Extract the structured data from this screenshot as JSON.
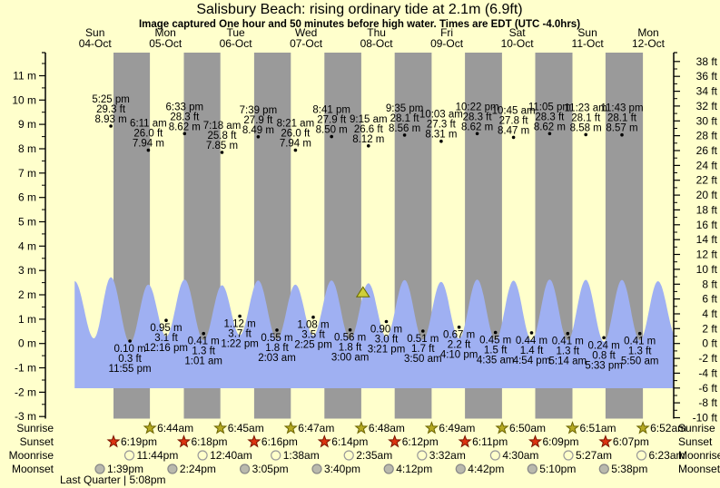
{
  "title": "Salisbury Beach: rising  ordinary tide at 2.1m (6.9ft)",
  "subtitle": "Image captured One hour and 50 minutes before high water. Times are EDT (UTC -4.0hrs)",
  "moon_phase": "Last Quarter | 5:08pm",
  "row_labels": {
    "sunrise": "Sunrise",
    "sunset": "Sunset",
    "moonrise": "Moonrise",
    "moonset": "Moonset"
  },
  "colors": {
    "background": "#ffffcc",
    "night_band": "#9a9a9a",
    "tide_fill": "#9fb0f2",
    "date_text": "#ee2222",
    "axis": "#000000",
    "sunrise_star": "#b5aa22",
    "sunrise_star_edge": "#6b6400",
    "sunset_star": "#dd3311",
    "sunset_star_edge": "#7a1500",
    "moonrise_circle": "#ffffca",
    "moonrise_circle_edge": "#999999",
    "moonset_circle": "#b9b9ad",
    "moonset_circle_edge": "#888888",
    "marker_triangle": "#cfcf3a",
    "marker_triangle_edge": "#6b6b00"
  },
  "chart_data": {
    "type": "area",
    "title": "Salisbury Beach: rising  ordinary tide at 2.1m (6.9ft)",
    "subtitle": "Image captured One hour and 50 minutes before high water. Times are EDT (UTC -4.0hrs)",
    "ylabel_left_unit": "m",
    "ylabel_right_unit": "ft",
    "y_axis_left_ticks": [
      "11 m",
      "10 m",
      "9 m",
      "8 m",
      "7 m",
      "6 m",
      "5 m",
      "4 m",
      "3 m",
      "2 m",
      "1 m",
      "0 m",
      "-1 m",
      "-2 m",
      "-3 m"
    ],
    "y_axis_right_ticks": [
      "38 ft",
      "36 ft",
      "34 ft",
      "32 ft",
      "30 ft",
      "28 ft",
      "26 ft",
      "24 ft",
      "22 ft",
      "20 ft",
      "18 ft",
      "16 ft",
      "14 ft",
      "12 ft",
      "10 ft",
      "8 ft",
      "6 ft",
      "4 ft",
      "2 ft",
      "0 ft",
      "-2 ft",
      "-4 ft",
      "-6 ft",
      "-8 ft",
      "-10 ft"
    ],
    "days": [
      {
        "name": "Sun",
        "date": "04-Oct"
      },
      {
        "name": "Mon",
        "date": "05-Oct"
      },
      {
        "name": "Tue",
        "date": "06-Oct"
      },
      {
        "name": "Wed",
        "date": "07-Oct"
      },
      {
        "name": "Thu",
        "date": "08-Oct"
      },
      {
        "name": "Fri",
        "date": "09-Oct"
      },
      {
        "name": "Sat",
        "date": "10-Oct"
      },
      {
        "name": "Sun",
        "date": "11-Oct"
      },
      {
        "name": "Mon",
        "date": "12-Oct"
      }
    ],
    "high_tides": [
      {
        "day": 0,
        "time": "5:25 pm",
        "height_ft": "29.3 ft",
        "height_m": "8.93 m"
      },
      {
        "day": 1,
        "time": "6:11 am",
        "height_ft": "26.0 ft",
        "height_m": "7.94 m"
      },
      {
        "day": 1,
        "time": "6:33 pm",
        "height_ft": "28.3 ft",
        "height_m": "8.62 m"
      },
      {
        "day": 2,
        "time": "7:18 am",
        "height_ft": "25.8 ft",
        "height_m": "7.85 m"
      },
      {
        "day": 2,
        "time": "7:39 pm",
        "height_ft": "27.9 ft",
        "height_m": "8.49 m"
      },
      {
        "day": 3,
        "time": "8:21 am",
        "height_ft": "26.0 ft",
        "height_m": "7.94 m"
      },
      {
        "day": 3,
        "time": "8:41 pm",
        "height_ft": "27.9 ft",
        "height_m": "8.50 m"
      },
      {
        "day": 4,
        "time": "9:15 am",
        "height_ft": "26.6 ft",
        "height_m": "8.12 m"
      },
      {
        "day": 4,
        "time": "9:35 pm",
        "height_ft": "28.1 ft",
        "height_m": "8.56 m"
      },
      {
        "day": 5,
        "time": "10:03 am",
        "height_ft": "27.3 ft",
        "height_m": "8.31 m"
      },
      {
        "day": 5,
        "time": "10:22 pm",
        "height_ft": "28.3 ft",
        "height_m": "8.62 m"
      },
      {
        "day": 6,
        "time": "10:45 am",
        "height_ft": "27.8 ft",
        "height_m": "8.47 m"
      },
      {
        "day": 6,
        "time": "11:05 pm",
        "height_ft": "28.3 ft",
        "height_m": "8.62 m"
      },
      {
        "day": 7,
        "time": "11:23 am",
        "height_ft": "28.1 ft",
        "height_m": "8.58 m"
      },
      {
        "day": 7,
        "time": "11:43 pm",
        "height_ft": "28.1 ft",
        "height_m": "8.57 m"
      }
    ],
    "low_tides": [
      {
        "day": 0,
        "time": "11:55 pm",
        "height_ft": "0.3 ft",
        "height_m": "0.10 m"
      },
      {
        "day": 1,
        "time": "12:16 pm",
        "height_ft": "3.1 ft",
        "height_m": "0.95 m"
      },
      {
        "day": 2,
        "time": "1:01 am",
        "height_ft": "1.3 ft",
        "height_m": "0.41 m"
      },
      {
        "day": 2,
        "time": "1:22 pm",
        "height_ft": "3.7 ft",
        "height_m": "1.12 m"
      },
      {
        "day": 3,
        "time": "2:03 am",
        "height_ft": "1.8 ft",
        "height_m": "0.55 m"
      },
      {
        "day": 3,
        "time": "2:25 pm",
        "height_ft": "3.5 ft",
        "height_m": "1.08 m"
      },
      {
        "day": 4,
        "time": "3:00 am",
        "height_ft": "1.8 ft",
        "height_m": "0.56 m"
      },
      {
        "day": 4,
        "time": "3:21 pm",
        "height_ft": "3.0 ft",
        "height_m": "0.90 m"
      },
      {
        "day": 5,
        "time": "3:50 am",
        "height_ft": "1.7 ft",
        "height_m": "0.51 m"
      },
      {
        "day": 5,
        "time": "4:10 pm",
        "height_ft": "2.2 ft",
        "height_m": "0.67 m"
      },
      {
        "day": 6,
        "time": "4:35 am",
        "height_ft": "1.5 ft",
        "height_m": "0.45 m"
      },
      {
        "day": 6,
        "time": "4:54 pm",
        "height_ft": "1.4 ft",
        "height_m": "0.44 m"
      },
      {
        "day": 7,
        "time": "5:14 am",
        "height_ft": "1.3 ft",
        "height_m": "0.41 m"
      },
      {
        "day": 7,
        "time": "5:33 pm",
        "height_ft": "0.8 ft",
        "height_m": "0.24 m"
      },
      {
        "day": 8,
        "time": "5:50 am",
        "height_ft": "1.3 ft",
        "height_m": "0.41 m"
      }
    ],
    "sunrise": [
      {
        "day": 1,
        "time": "6:44am"
      },
      {
        "day": 2,
        "time": "6:45am"
      },
      {
        "day": 3,
        "time": "6:47am"
      },
      {
        "day": 4,
        "time": "6:48am"
      },
      {
        "day": 5,
        "time": "6:49am"
      },
      {
        "day": 6,
        "time": "6:50am"
      },
      {
        "day": 7,
        "time": "6:51am"
      },
      {
        "day": 8,
        "time": "6:52am"
      }
    ],
    "sunset": [
      {
        "day": 0,
        "time": "6:19pm"
      },
      {
        "day": 1,
        "time": "6:18pm"
      },
      {
        "day": 2,
        "time": "6:16pm"
      },
      {
        "day": 3,
        "time": "6:14pm"
      },
      {
        "day": 4,
        "time": "6:12pm"
      },
      {
        "day": 5,
        "time": "6:11pm"
      },
      {
        "day": 6,
        "time": "6:09pm"
      },
      {
        "day": 7,
        "time": "6:07pm"
      }
    ],
    "moonrise": [
      {
        "day": 0,
        "time": "11:44pm"
      },
      {
        "day": 2,
        "time": "12:40am"
      },
      {
        "day": 3,
        "time": "1:38am"
      },
      {
        "day": 4,
        "time": "2:35am"
      },
      {
        "day": 5,
        "time": "3:32am"
      },
      {
        "day": 6,
        "time": "4:30am"
      },
      {
        "day": 7,
        "time": "5:27am"
      },
      {
        "day": 8,
        "time": "6:23am"
      }
    ],
    "moonset": [
      {
        "day": 0,
        "time": "1:39pm"
      },
      {
        "day": 1,
        "time": "2:24pm"
      },
      {
        "day": 2,
        "time": "3:05pm"
      },
      {
        "day": 3,
        "time": "3:40pm"
      },
      {
        "day": 4,
        "time": "4:12pm"
      },
      {
        "day": 5,
        "time": "4:42pm"
      },
      {
        "day": 6,
        "time": "5:10pm"
      },
      {
        "day": 7,
        "time": "5:38pm"
      }
    ],
    "now_marker": {
      "level_m": 2.1,
      "day": 4,
      "time": "7:25 am"
    }
  }
}
